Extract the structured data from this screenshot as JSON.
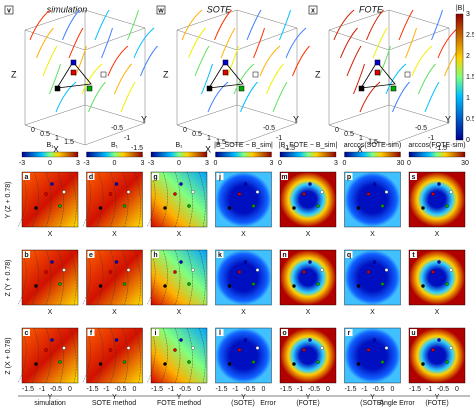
{
  "top_panels": [
    {
      "letter": "v",
      "title": "simulation"
    },
    {
      "letter": "w",
      "title": "SOTE"
    },
    {
      "letter": "x",
      "title": "FOTE"
    }
  ],
  "top_axes": {
    "x": "X",
    "y": "Y",
    "z": "Z",
    "x_ticks": [
      "0",
      "0.5",
      "1",
      "1.5"
    ],
    "y_ticks": [
      "-1.5",
      "-1",
      "-0.5"
    ]
  },
  "top_colorbar": {
    "label": "|B|",
    "ticks": [
      "3",
      "2.5",
      "2",
      "1.5",
      "1",
      "0.5",
      "0"
    ]
  },
  "colorbars": [
    {
      "label": "B₁",
      "ticks": [
        "-3",
        "0",
        "3"
      ]
    },
    {
      "label": "B₁",
      "ticks": [
        "-3",
        "0",
        "3"
      ]
    },
    {
      "label": "B₁",
      "ticks": [
        "-3",
        "0",
        "3"
      ]
    },
    {
      "label": "|B_SOTE − B_sim|",
      "ticks": [
        "0",
        "3"
      ]
    },
    {
      "label": "|B_FOTE − B_sim|",
      "ticks": [
        "0",
        "3"
      ]
    },
    {
      "label": "arccos(SOTE·sim)",
      "ticks": [
        "0",
        "30"
      ]
    },
    {
      "label": "arccos(FOTE·sim)",
      "ticks": [
        "0",
        "30"
      ]
    }
  ],
  "row_labels": [
    "Y (Z + 0.78)",
    "Z (Y + 0.78)",
    "Z (X + 0.78)"
  ],
  "row_axis": [
    "X",
    "X",
    "Y"
  ],
  "panel_letters": [
    [
      "a",
      "d",
      "g",
      "j",
      "m",
      "p",
      "s"
    ],
    [
      "b",
      "e",
      "h",
      "k",
      "n",
      "q",
      "t"
    ],
    [
      "c",
      "f",
      "i",
      "l",
      "o",
      "r",
      "u"
    ]
  ],
  "bottom_ticks": [
    "-1.5",
    "-1",
    "-0.5",
    "0"
  ],
  "footer": [
    "simulation",
    "SOTE method",
    "FOTE method",
    "Error",
    "(SOTE)",
    "(FOTE)",
    "Angle Error",
    "(SOTE)",
    "(FOTE)"
  ]
}
